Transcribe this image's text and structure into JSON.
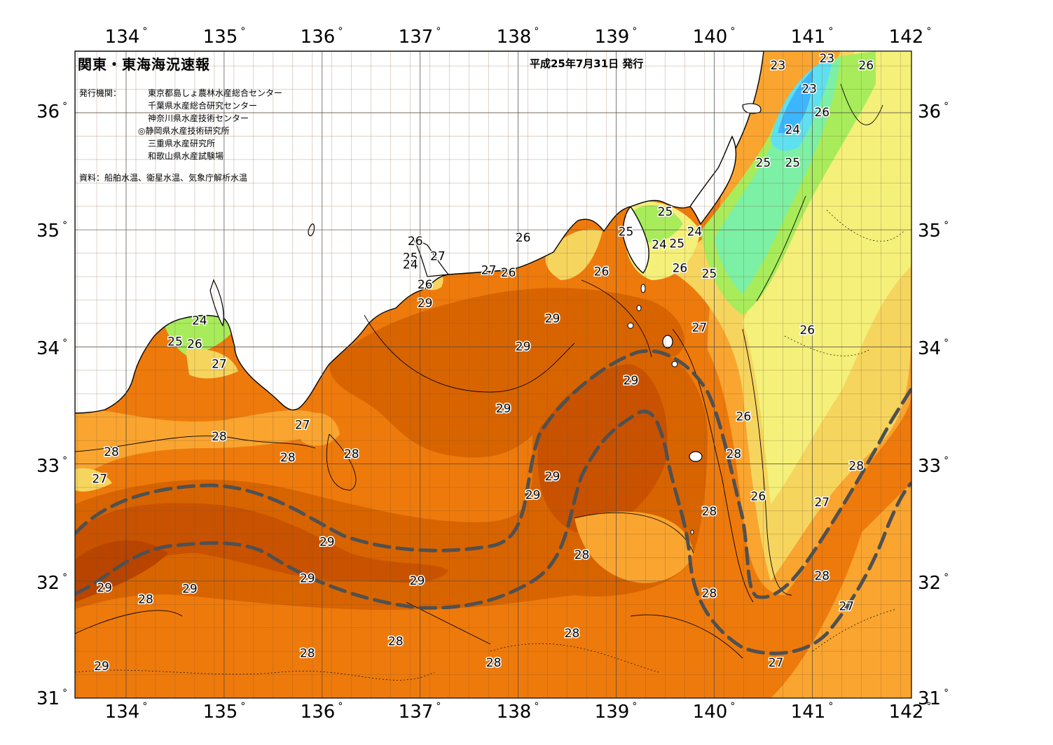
{
  "map": {
    "title": "関東・東海海況速報",
    "issue_date": "平成25年7月31日 発行",
    "agencies_label": "発行機関：",
    "agencies": [
      "東京都島しょ農林水産総合センター",
      "千葉県水産総合研究センター",
      "神奈川県水産技術センター",
      "◎静岡県水産技術研究所",
      "三重県水産研究所",
      "和歌山県水産試験場"
    ],
    "source": "資料：船舶水温、衛星水温、気象庁解析水温",
    "lon_ticks": [
      "134°",
      "135°",
      "136°",
      "137°",
      "138°",
      "139°",
      "140°",
      "141°",
      "142°"
    ],
    "lat_ticks": [
      "36°",
      "35°",
      "34°",
      "33°",
      "32°",
      "31°"
    ],
    "contour_labels": [
      {
        "text": "23",
        "lon": 140.65,
        "lat": 36.4
      },
      {
        "text": "23",
        "lon": 141.15,
        "lat": 36.46
      },
      {
        "text": "23",
        "lon": 140.97,
        "lat": 36.2
      },
      {
        "text": "26",
        "lon": 141.55,
        "lat": 36.4
      },
      {
        "text": "26",
        "lon": 141.1,
        "lat": 36.0
      },
      {
        "text": "24",
        "lon": 140.8,
        "lat": 35.85
      },
      {
        "text": "25",
        "lon": 140.5,
        "lat": 35.57
      },
      {
        "text": "25",
        "lon": 140.8,
        "lat": 35.57
      },
      {
        "text": "25",
        "lon": 139.5,
        "lat": 35.15
      },
      {
        "text": "25",
        "lon": 139.1,
        "lat": 34.98
      },
      {
        "text": "24",
        "lon": 139.8,
        "lat": 34.98
      },
      {
        "text": "24",
        "lon": 139.44,
        "lat": 34.87
      },
      {
        "text": "25",
        "lon": 139.62,
        "lat": 34.88
      },
      {
        "text": "26",
        "lon": 138.05,
        "lat": 34.93
      },
      {
        "text": "26",
        "lon": 136.95,
        "lat": 34.9
      },
      {
        "text": "27",
        "lon": 137.18,
        "lat": 34.77
      },
      {
        "text": "25",
        "lon": 136.9,
        "lat": 34.76
      },
      {
        "text": "24",
        "lon": 136.9,
        "lat": 34.7
      },
      {
        "text": "26",
        "lon": 137.05,
        "lat": 34.53
      },
      {
        "text": "29",
        "lon": 137.05,
        "lat": 34.37
      },
      {
        "text": "27",
        "lon": 137.7,
        "lat": 34.65
      },
      {
        "text": "26",
        "lon": 137.9,
        "lat": 34.63
      },
      {
        "text": "26",
        "lon": 138.85,
        "lat": 34.64
      },
      {
        "text": "26",
        "lon": 139.65,
        "lat": 34.67
      },
      {
        "text": "25",
        "lon": 139.95,
        "lat": 34.62
      },
      {
        "text": "29",
        "lon": 138.35,
        "lat": 34.24
      },
      {
        "text": "29",
        "lon": 138.05,
        "lat": 34.0
      },
      {
        "text": "27",
        "lon": 139.85,
        "lat": 34.16
      },
      {
        "text": "26",
        "lon": 140.95,
        "lat": 34.14
      },
      {
        "text": "29",
        "lon": 139.15,
        "lat": 33.71
      },
      {
        "text": "29",
        "lon": 137.85,
        "lat": 33.47
      },
      {
        "text": "26",
        "lon": 140.3,
        "lat": 33.4
      },
      {
        "text": "28",
        "lon": 140.2,
        "lat": 33.08
      },
      {
        "text": "28",
        "lon": 141.45,
        "lat": 32.98
      },
      {
        "text": "29",
        "lon": 138.35,
        "lat": 32.89
      },
      {
        "text": "29",
        "lon": 138.15,
        "lat": 32.73
      },
      {
        "text": "26",
        "lon": 140.45,
        "lat": 32.72
      },
      {
        "text": "27",
        "lon": 141.1,
        "lat": 32.67
      },
      {
        "text": "28",
        "lon": 139.95,
        "lat": 32.59
      },
      {
        "text": "28",
        "lon": 138.65,
        "lat": 32.22
      },
      {
        "text": "28",
        "lon": 141.1,
        "lat": 32.04
      },
      {
        "text": "28",
        "lon": 139.95,
        "lat": 31.89
      },
      {
        "text": "27",
        "lon": 141.35,
        "lat": 31.78
      },
      {
        "text": "28",
        "lon": 138.55,
        "lat": 31.55
      },
      {
        "text": "27",
        "lon": 140.63,
        "lat": 31.3
      },
      {
        "text": "28",
        "lon": 137.75,
        "lat": 31.3
      },
      {
        "text": "24",
        "lon": 134.75,
        "lat": 34.22
      },
      {
        "text": "25",
        "lon": 134.5,
        "lat": 34.04
      },
      {
        "text": "26",
        "lon": 134.7,
        "lat": 34.02
      },
      {
        "text": "27",
        "lon": 134.95,
        "lat": 33.85
      },
      {
        "text": "27",
        "lon": 135.8,
        "lat": 33.33
      },
      {
        "text": "28",
        "lon": 134.95,
        "lat": 33.23
      },
      {
        "text": "28",
        "lon": 133.85,
        "lat": 33.1
      },
      {
        "text": "28",
        "lon": 135.65,
        "lat": 33.05
      },
      {
        "text": "28",
        "lon": 136.3,
        "lat": 33.08
      },
      {
        "text": "27",
        "lon": 133.73,
        "lat": 32.87
      },
      {
        "text": "29",
        "lon": 136.05,
        "lat": 32.33
      },
      {
        "text": "29",
        "lon": 135.85,
        "lat": 32.02
      },
      {
        "text": "29",
        "lon": 136.97,
        "lat": 32.0
      },
      {
        "text": "29",
        "lon": 133.78,
        "lat": 31.94
      },
      {
        "text": "28",
        "lon": 134.2,
        "lat": 31.84
      },
      {
        "text": "29",
        "lon": 134.65,
        "lat": 31.93
      },
      {
        "text": "28",
        "lon": 136.75,
        "lat": 31.48
      },
      {
        "text": "28",
        "lon": 135.85,
        "lat": 31.38
      },
      {
        "text": "29",
        "lon": 133.75,
        "lat": 31.27
      }
    ],
    "colors": {
      "c31": "#b84400",
      "c30": "#c85200",
      "c29": "#d86400",
      "c28": "#ee7a0c",
      "c27": "#f9a530",
      "c26": "#f6d55e",
      "c25": "#f4f07a",
      "c24": "#a8ec5c",
      "c23": "#7cf0a4",
      "c22": "#5fe0f0",
      "c21": "#3cb6ff",
      "land": "#ffffff",
      "coast": "#000000",
      "kuroshio": "#555555",
      "grid": "#444444"
    }
  }
}
